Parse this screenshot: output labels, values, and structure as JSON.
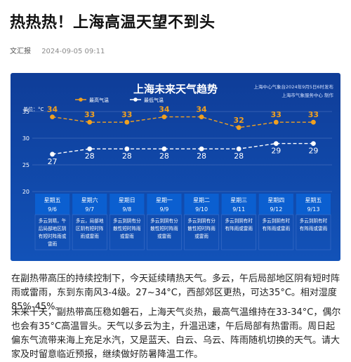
{
  "article": {
    "title": "热热热！上海高温天望不到头",
    "source": "文汇报",
    "datetime": "2024-09-05 09:11",
    "paragraphs": [
      "在副热带高压的持续控制下，今天延续晴热天气。多云，午后局部地区阴有短时阵雨或雷雨，东到东南风3-4级。27~34°C，西部郊区更热，可达35°C。相对湿度85%-45%。",
      "未来十天，副热带高压稳如磐石，上海天气炎热，最高气温维持在33-34°C，偶尔也会有35°C高温冒头。天气以多云为主，升温迅速，午后局部有热雷雨。周日起偏东气流带来海上充足水汽，又是蓝天、白云、乌云、阵雨随机切换的天气。请大家及时留意临近预报，继续做好防暑降温工作。"
    ]
  },
  "chart_data": {
    "type": "line",
    "title": "上海未来天气趋势",
    "source_line1": "上海中心气象台2024年9月5日6时发布",
    "source_line2": "上海市气象服务中心 制作",
    "y_unit": "单位：°C",
    "y_ticks": [
      35,
      30,
      25,
      20
    ],
    "ylim": [
      20,
      35
    ],
    "grid": true,
    "legend_position": "top-center",
    "series": [
      {
        "name": "最高气温",
        "color": "#f0a020",
        "values": [
          34,
          33,
          33,
          34,
          34,
          32,
          33,
          33
        ]
      },
      {
        "name": "最低气温",
        "color": "#ffffff",
        "values": [
          27,
          28,
          28,
          28,
          28,
          28,
          29,
          29
        ]
      }
    ],
    "days": [
      {
        "weekday": "星期五",
        "date": "9/6",
        "desc": [
          "多云到晴，午",
          "后局部地区阴",
          "有短时阵雨或",
          "雷雨"
        ]
      },
      {
        "weekday": "星期六",
        "date": "9/7",
        "desc": [
          "多云，局部地",
          "区阴有短时阵",
          "雨或雷雨"
        ]
      },
      {
        "weekday": "星期日",
        "date": "9/8",
        "desc": [
          "多云到阴有分",
          "散性短时阵雨",
          "或雷雨"
        ]
      },
      {
        "weekday": "星期一",
        "date": "9/9",
        "desc": [
          "多云到阴有分",
          "散性短时阵雨",
          "或雷雨"
        ]
      },
      {
        "weekday": "星期二",
        "date": "9/10",
        "desc": [
          "多云到阴有分",
          "散性短时阵雨",
          "或雷雨"
        ]
      },
      {
        "weekday": "星期三",
        "date": "9/11",
        "desc": [
          "多云到阴有时",
          "有阵雨或雷雨"
        ]
      },
      {
        "weekday": "星期四",
        "date": "9/12",
        "desc": [
          "多云到阴有时",
          "有阵雨或雷雨"
        ]
      },
      {
        "weekday": "星期五",
        "date": "9/13",
        "desc": [
          "多云到阴有时",
          "有阵雨或雷雨"
        ]
      }
    ],
    "colors": {
      "background_top": "#0f3d98",
      "background_bottom": "#1252b8",
      "day_header": "#0b5fd0",
      "grid": "#5b7fc4"
    }
  }
}
